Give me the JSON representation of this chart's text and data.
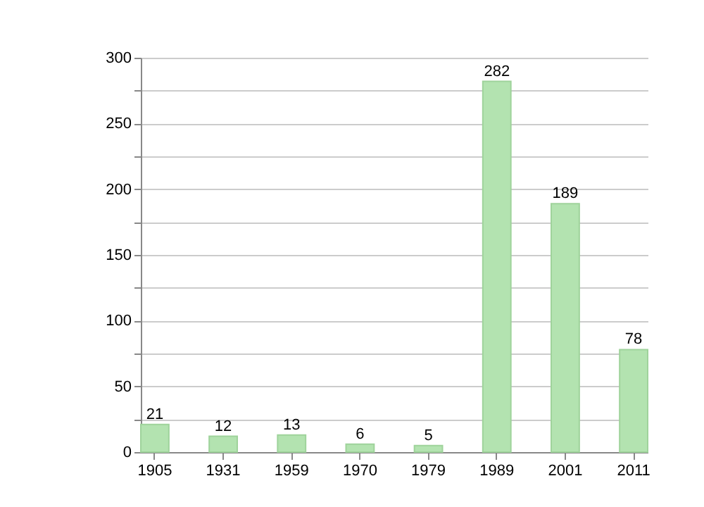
{
  "chart_data": {
    "type": "bar",
    "categories": [
      "1905",
      "1931",
      "1959",
      "1970",
      "1979",
      "1989",
      "2001",
      "2011"
    ],
    "values": [
      21,
      12,
      13,
      6,
      5,
      282,
      189,
      78
    ],
    "color": "#b3e3b0",
    "ylim": [
      0,
      300
    ],
    "yticks": [
      0,
      {
        "value": 25,
        "label": null
      },
      50,
      {
        "value": 75,
        "label": null
      },
      100,
      {
        "value": 125,
        "label": null
      },
      150,
      {
        "value": 175,
        "label": null
      },
      200,
      {
        "value": 225,
        "label": null
      },
      250,
      {
        "value": 275,
        "label": null
      },
      300
    ],
    "grid": true,
    "data_labels": true
  }
}
